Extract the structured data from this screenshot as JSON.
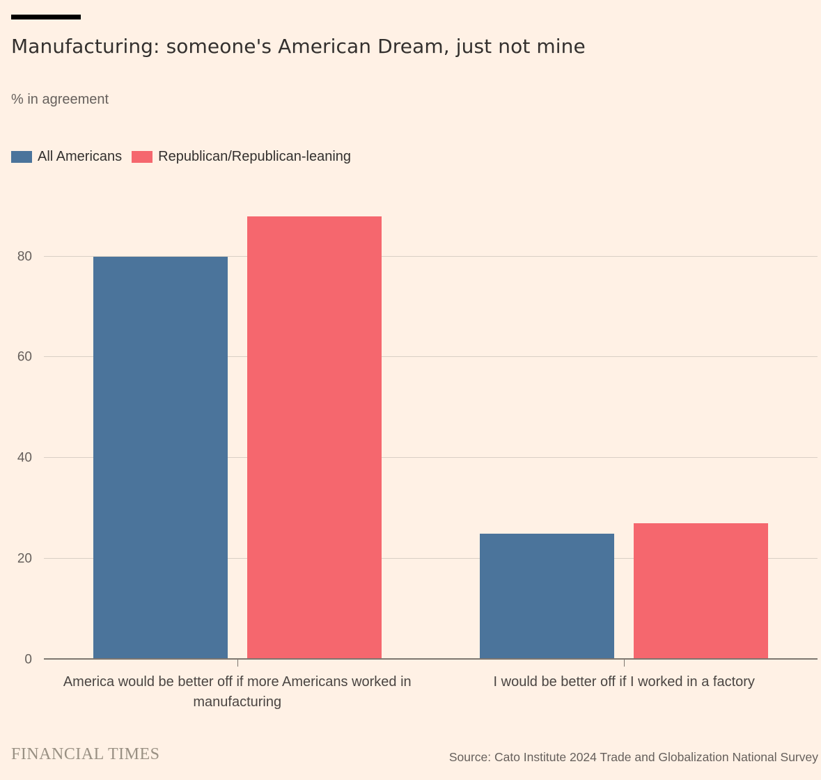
{
  "chart_data": {
    "type": "bar",
    "title": "Manufacturing: someone's American Dream, just not mine",
    "subtitle": "% in agreement",
    "categories": [
      "America would be better off if more Americans worked in manufacturing",
      "I would be better off if I worked in a factory"
    ],
    "series": [
      {
        "name": "All Americans",
        "color": "#4B749B",
        "values": [
          80,
          25
        ]
      },
      {
        "name": "Republican/Republican-leaning",
        "color": "#F5676E",
        "values": [
          88,
          27
        ]
      }
    ],
    "xlabel": "",
    "ylabel": "% in agreement",
    "yticks": [
      0,
      20,
      40,
      60,
      80
    ],
    "ylim": [
      0,
      95
    ],
    "grid": true,
    "legend_position": "top-left"
  },
  "footer": {
    "brand": "FINANCIAL TIMES",
    "source": "Source: Cato Institute 2024 Trade and Globalization National Survey"
  },
  "colors": {
    "background": "#FFF1E5",
    "gridline": "#D9CFC5",
    "axis": "#7D766F",
    "title_text": "#33302E",
    "muted_text": "#66605C",
    "category_text": "#4A4542",
    "brand_text": "#999083",
    "title_rule": "#000000"
  }
}
